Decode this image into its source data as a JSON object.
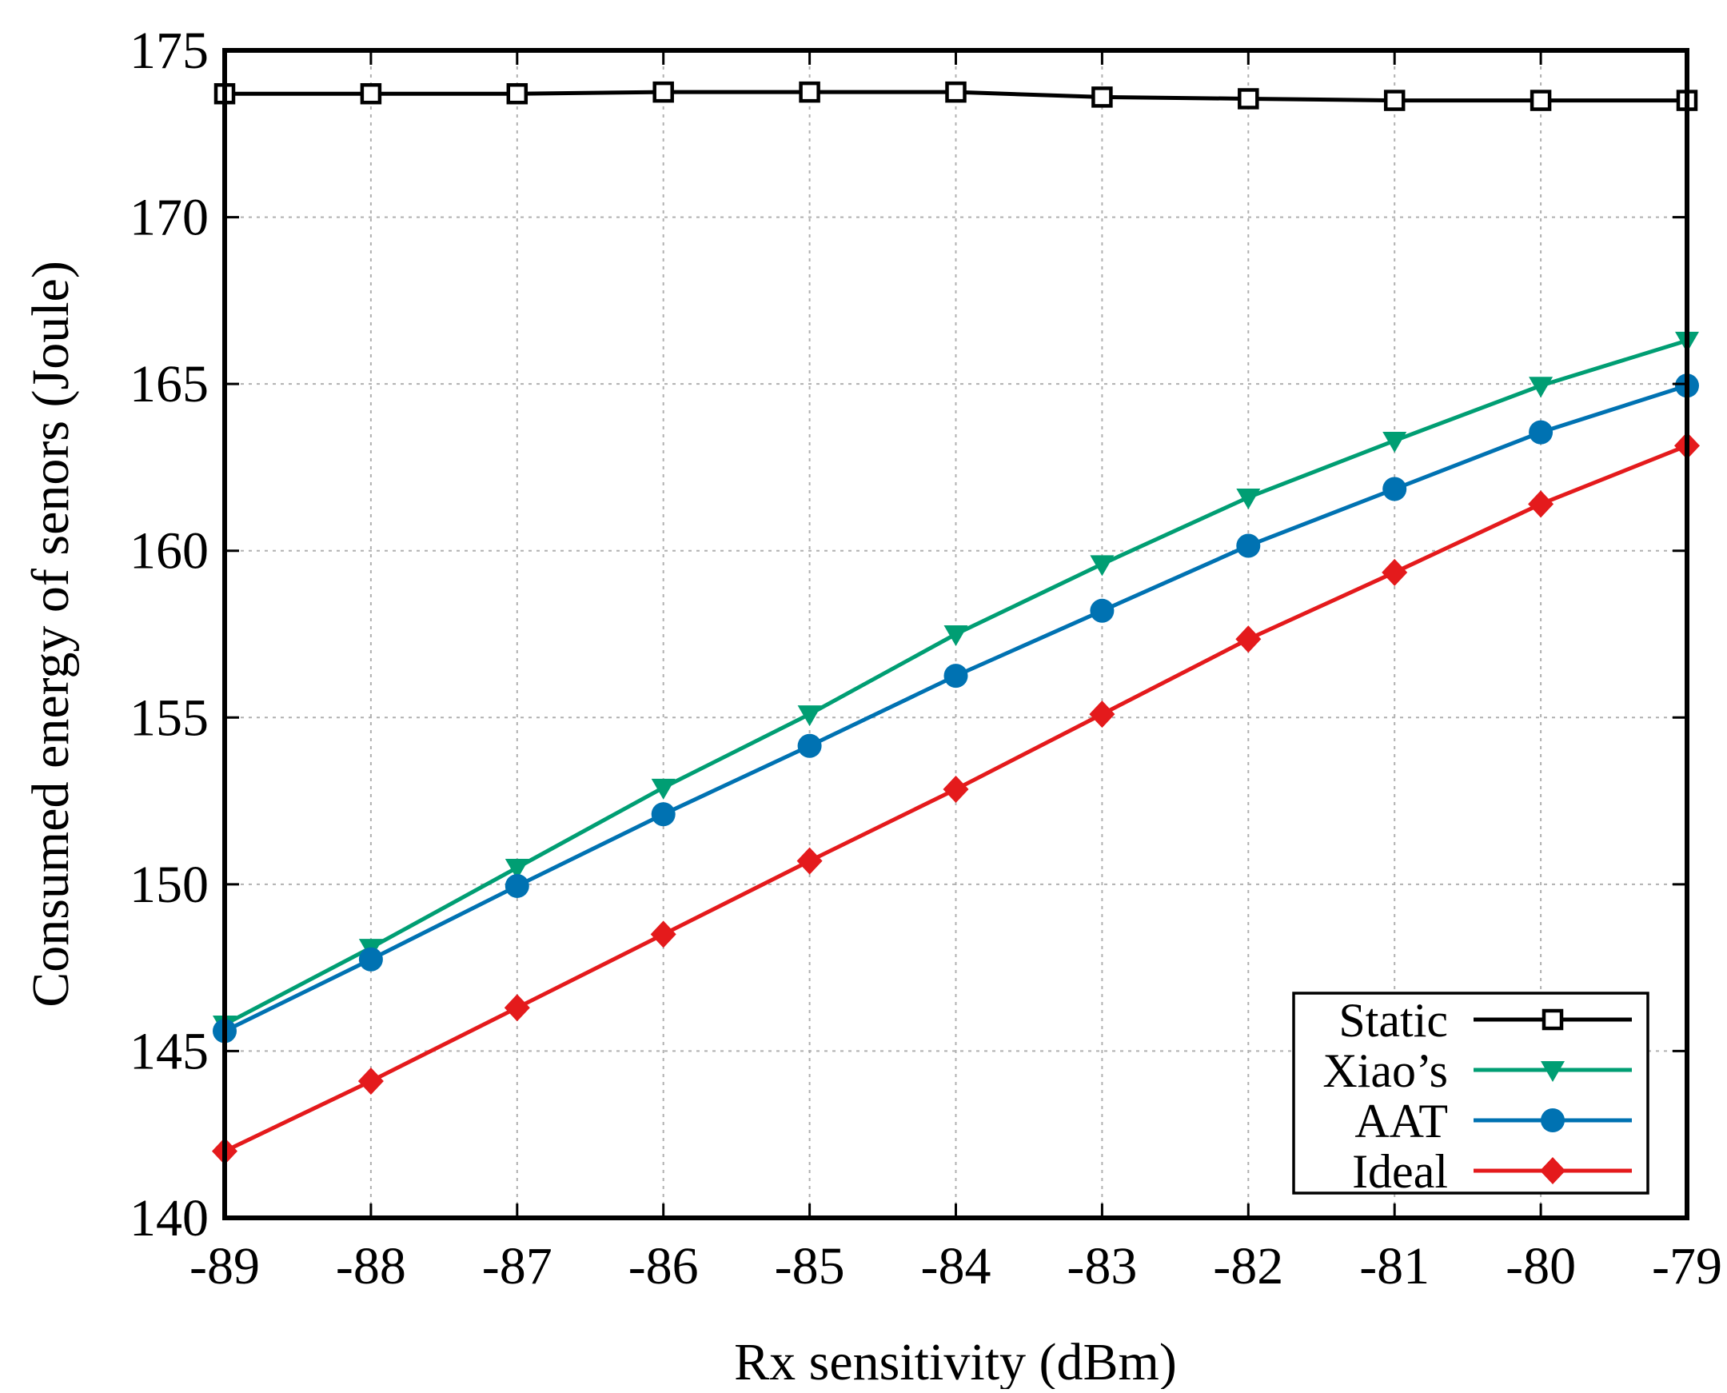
{
  "chart_data": {
    "type": "line",
    "title": "",
    "xlabel": "Rx sensitivity (dBm)",
    "ylabel": "Consumed energy of senors (Joule)",
    "x": [
      -89,
      -88,
      -87,
      -86,
      -85,
      -84,
      -83,
      -82,
      -81,
      -80,
      -79
    ],
    "xlim": [
      -89,
      -79
    ],
    "ylim": [
      140,
      175
    ],
    "x_ticks": [
      -89,
      -88,
      -87,
      -86,
      -85,
      -84,
      -83,
      -82,
      -81,
      -80,
      -79
    ],
    "y_ticks": [
      140,
      145,
      150,
      155,
      160,
      165,
      170,
      175
    ],
    "grid": true,
    "legend_position": "bottom-right",
    "series": [
      {
        "name": "Static",
        "color": "#000000",
        "marker": "open-square",
        "values": [
          173.7,
          173.7,
          173.7,
          173.75,
          173.75,
          173.75,
          173.6,
          173.55,
          173.5,
          173.5,
          173.5
        ]
      },
      {
        "name": "Xiao’s",
        "color": "#009e73",
        "marker": "triangle-down",
        "values": [
          145.8,
          148.1,
          150.5,
          152.9,
          155.1,
          157.5,
          159.6,
          161.6,
          163.3,
          164.95,
          166.3
        ]
      },
      {
        "name": "AAT",
        "color": "#0072b2",
        "marker": "circle",
        "values": [
          145.6,
          147.75,
          149.95,
          152.1,
          154.15,
          156.25,
          158.2,
          160.15,
          161.85,
          163.55,
          164.95
        ]
      },
      {
        "name": "Ideal",
        "color": "#e41a1c",
        "marker": "diamond",
        "values": [
          142.0,
          144.1,
          146.3,
          148.5,
          150.7,
          152.85,
          155.1,
          157.35,
          159.35,
          161.4,
          163.15
        ]
      }
    ]
  }
}
